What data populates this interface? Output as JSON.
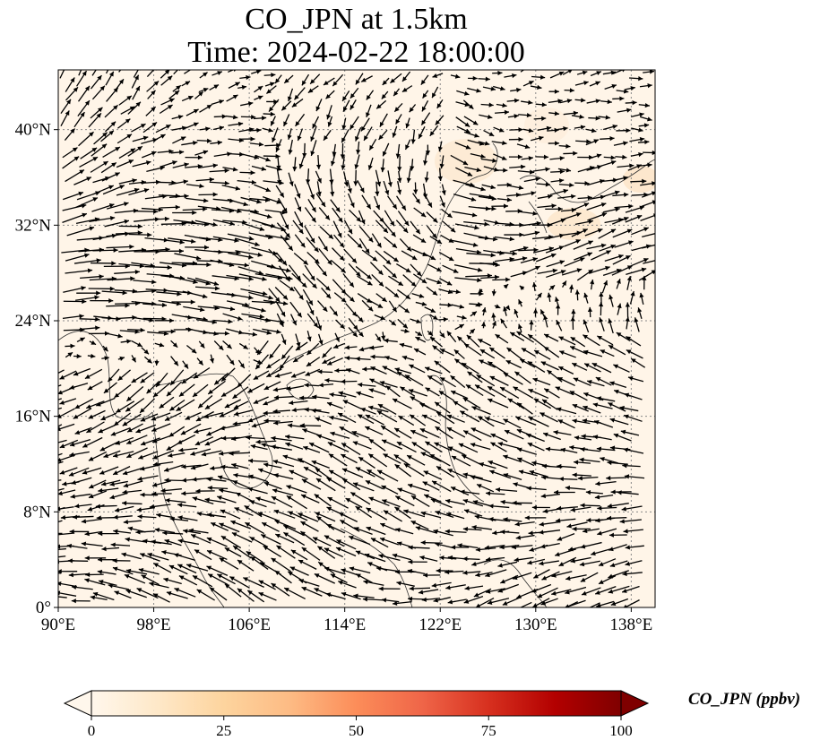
{
  "title_line1": "CO_JPN at 1.5km",
  "title_line2": "Time: 2024-02-22 18:00:00",
  "map": {
    "lon_range": [
      90,
      140
    ],
    "lat_range": [
      0,
      45
    ],
    "x_ticks": [
      {
        "value": 90,
        "label": "90°E"
      },
      {
        "value": 98,
        "label": "98°E"
      },
      {
        "value": 106,
        "label": "106°E"
      },
      {
        "value": 114,
        "label": "114°E"
      },
      {
        "value": 122,
        "label": "122°E"
      },
      {
        "value": 130,
        "label": "130°E"
      },
      {
        "value": 138,
        "label": "138°E"
      }
    ],
    "y_ticks": [
      {
        "value": 0,
        "label": "0°"
      },
      {
        "value": 8,
        "label": "8°N"
      },
      {
        "value": 16,
        "label": "16°N"
      },
      {
        "value": 24,
        "label": "24°N"
      },
      {
        "value": 32,
        "label": "32°N"
      },
      {
        "value": 40,
        "label": "40°N"
      }
    ],
    "background_color": "#fff5e8",
    "gridlines": "dotted",
    "quiver_color": "#000000"
  },
  "colorbar": {
    "label": "CO_JPN (ppbv)",
    "colormap": "OrRd",
    "min": 0,
    "max": 100,
    "extend": "both",
    "ticks": [
      {
        "value": 0,
        "label": "0"
      },
      {
        "value": 25,
        "label": "25"
      },
      {
        "value": 50,
        "label": "50"
      },
      {
        "value": 75,
        "label": "75"
      },
      {
        "value": 100,
        "label": "100"
      }
    ],
    "colors": [
      "#fff7ec",
      "#fee8c8",
      "#fdd49e",
      "#fdbb84",
      "#fc8d59",
      "#ef6548",
      "#d7301f",
      "#b30000",
      "#7f0000"
    ]
  }
}
